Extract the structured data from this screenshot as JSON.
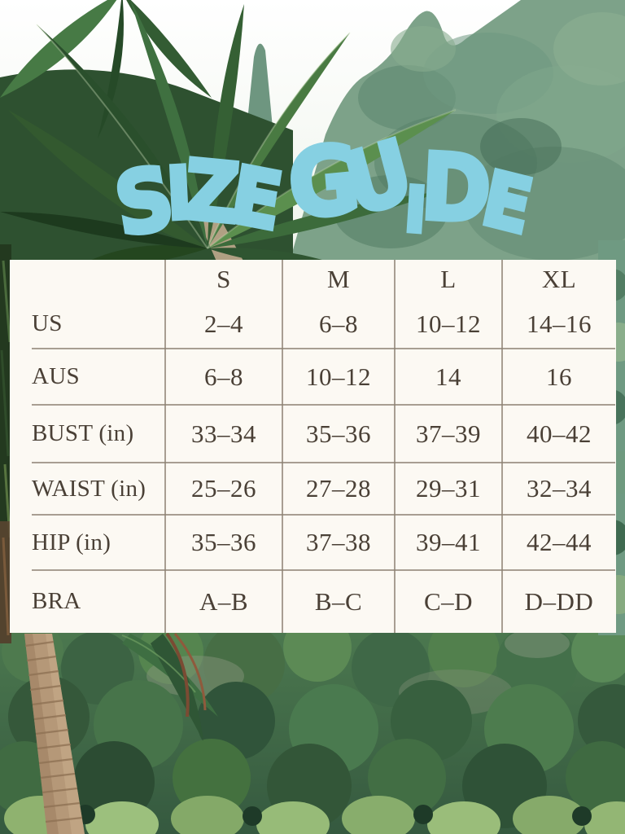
{
  "title": "SIZE GUIDE",
  "colors": {
    "title_blue": "#86d0e2",
    "panel_background": "#fcf9f3",
    "table_text": "#4a4036",
    "table_line": "#8b8073"
  },
  "chart_data": {
    "type": "table",
    "title": "SIZE GUIDE",
    "columns": [
      "S",
      "M",
      "L",
      "XL"
    ],
    "rows": [
      {
        "label": "US",
        "values": [
          "2–4",
          "6–8",
          "10–12",
          "14–16"
        ]
      },
      {
        "label": "AUS",
        "values": [
          "6–8",
          "10–12",
          "14",
          "16"
        ]
      },
      {
        "label": "BUST (in)",
        "values": [
          "33–34",
          "35–36",
          "37–39",
          "40–42"
        ]
      },
      {
        "label": "WAIST (in)",
        "values": [
          "25–26",
          "27–28",
          "29–31",
          "32–34"
        ]
      },
      {
        "label": "HIP (in)",
        "values": [
          "35–36",
          "37–38",
          "39–41",
          "42–44"
        ]
      },
      {
        "label": "BRA",
        "values": [
          "A–B",
          "B–C",
          "C–D",
          "D–DD"
        ]
      }
    ]
  }
}
